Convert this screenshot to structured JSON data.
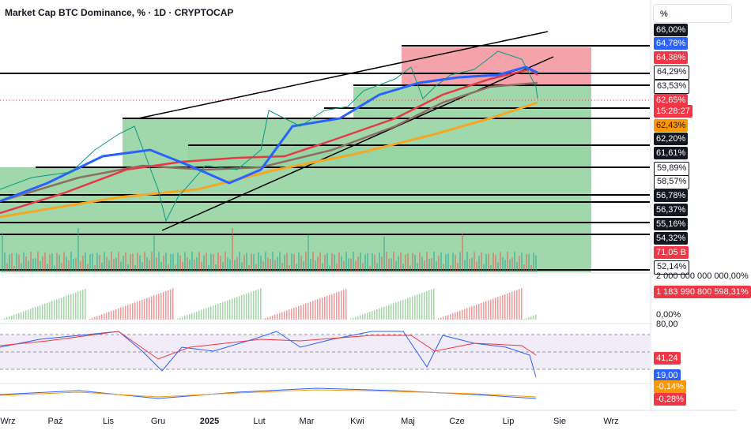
{
  "header": {
    "title": "Market Cap BTC Dominance, % · 1D · CRYPTOCAP",
    "unit": "%"
  },
  "price_scale": [
    "66,00%",
    "64,78%",
    "64,38%",
    "64,29%",
    "63,53%",
    "62,65%",
    "15:28:27",
    "62,43%",
    "62,20%",
    "61,61%",
    "59,89%",
    "58,57%",
    "56,78%",
    "56,37%",
    "55,16%",
    "54,32%",
    "71,05 B",
    "52,14%"
  ],
  "indicator_scale": [
    "2 000 000 000 000,00%",
    "1 183 990 800 598,31%",
    "0,00%",
    "80,00",
    "41,24",
    "19,00",
    "-0,14%",
    "-0,28%"
  ],
  "time_axis": [
    "Wrz",
    "Paź",
    "Lis",
    "Gru",
    "2025",
    "Lut",
    "Mar",
    "Kwi",
    "Maj",
    "Cze",
    "Lip",
    "Sie",
    "Wrz"
  ]
}
